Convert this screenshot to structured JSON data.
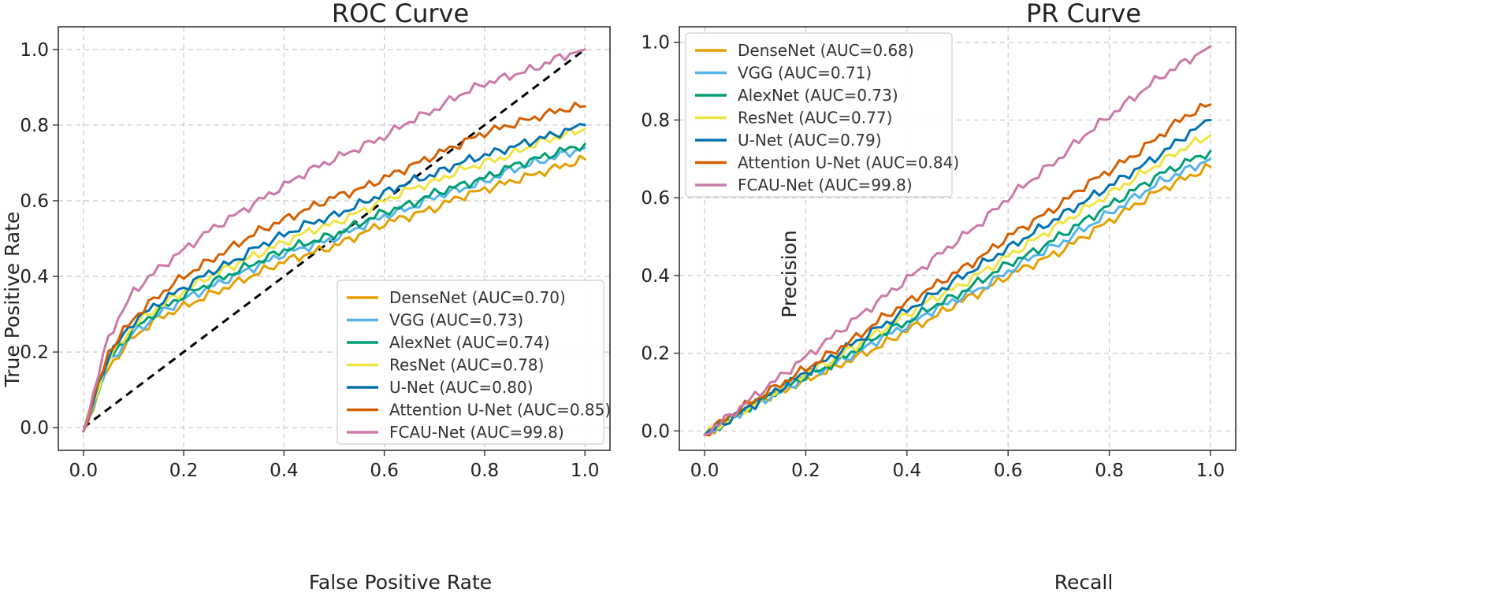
{
  "chart_data": [
    {
      "type": "line",
      "title": "ROC Curve",
      "xlabel": "False Positive Rate",
      "ylabel": "True Positive Rate",
      "xlim": [
        -0.05,
        1.05
      ],
      "ylim": [
        -0.06,
        1.06
      ],
      "xticks": [
        "0.0",
        "0.2",
        "0.4",
        "0.6",
        "0.8",
        "1.0"
      ],
      "yticks": [
        "0.0",
        "0.2",
        "0.4",
        "0.6",
        "0.8",
        "1.0"
      ],
      "grid": true,
      "legend_position": "lower-right",
      "diagonal": {
        "style": "dashed",
        "color": "#000000",
        "from": [
          0,
          0
        ],
        "to": [
          1,
          1
        ]
      },
      "x": [
        0.0,
        0.05,
        0.1,
        0.15,
        0.2,
        0.25,
        0.3,
        0.35,
        0.4,
        0.45,
        0.5,
        0.55,
        0.6,
        0.65,
        0.7,
        0.75,
        0.8,
        0.85,
        0.9,
        0.95,
        1.0
      ],
      "series": [
        {
          "name": "DenseNet (AUC=0.70)",
          "color": "#E69F00",
          "values": [
            -0.01,
            0.16,
            0.24,
            0.29,
            0.32,
            0.35,
            0.38,
            0.41,
            0.44,
            0.46,
            0.48,
            0.51,
            0.54,
            0.56,
            0.58,
            0.61,
            0.63,
            0.65,
            0.67,
            0.69,
            0.71
          ]
        },
        {
          "name": "VGG (AUC=0.73)",
          "color": "#56B4E9",
          "values": [
            -0.01,
            0.17,
            0.25,
            0.3,
            0.34,
            0.37,
            0.4,
            0.43,
            0.46,
            0.48,
            0.5,
            0.53,
            0.56,
            0.58,
            0.61,
            0.63,
            0.65,
            0.68,
            0.7,
            0.72,
            0.74
          ]
        },
        {
          "name": "AlexNet (AUC=0.74)",
          "color": "#009E73",
          "values": [
            -0.01,
            0.18,
            0.26,
            0.31,
            0.35,
            0.38,
            0.41,
            0.44,
            0.47,
            0.49,
            0.51,
            0.54,
            0.57,
            0.59,
            0.62,
            0.64,
            0.66,
            0.69,
            0.71,
            0.73,
            0.75
          ]
        },
        {
          "name": "ResNet (AUC=0.78)",
          "color": "#F0E442",
          "values": [
            -0.01,
            0.18,
            0.27,
            0.32,
            0.36,
            0.4,
            0.43,
            0.46,
            0.49,
            0.52,
            0.54,
            0.57,
            0.6,
            0.63,
            0.65,
            0.68,
            0.7,
            0.72,
            0.75,
            0.77,
            0.79
          ]
        },
        {
          "name": "U-Net (AUC=0.80)",
          "color": "#0072B2",
          "values": [
            -0.01,
            0.19,
            0.28,
            0.33,
            0.37,
            0.41,
            0.44,
            0.48,
            0.51,
            0.54,
            0.56,
            0.59,
            0.62,
            0.65,
            0.67,
            0.7,
            0.72,
            0.74,
            0.76,
            0.78,
            0.8
          ]
        },
        {
          "name": "Attention U-Net (AUC=0.85)",
          "color": "#D55E00",
          "values": [
            -0.01,
            0.2,
            0.29,
            0.35,
            0.4,
            0.44,
            0.48,
            0.52,
            0.55,
            0.58,
            0.61,
            0.63,
            0.66,
            0.69,
            0.72,
            0.75,
            0.78,
            0.8,
            0.82,
            0.84,
            0.85
          ]
        },
        {
          "name": "FCAU-Net (AUC=99.8)",
          "color": "#CC79A7",
          "values": [
            -0.01,
            0.24,
            0.36,
            0.42,
            0.47,
            0.52,
            0.56,
            0.6,
            0.64,
            0.68,
            0.71,
            0.74,
            0.77,
            0.81,
            0.84,
            0.88,
            0.91,
            0.93,
            0.95,
            0.98,
            1.0
          ]
        }
      ]
    },
    {
      "type": "line",
      "title": "PR Curve",
      "xlabel": "Recall",
      "ylabel": "Precision",
      "xlim": [
        -0.05,
        1.05
      ],
      "ylim": [
        -0.05,
        1.04
      ],
      "xticks": [
        "0.0",
        "0.2",
        "0.4",
        "0.6",
        "0.8",
        "1.0"
      ],
      "yticks": [
        "0.0",
        "0.2",
        "0.4",
        "0.6",
        "0.8",
        "1.0"
      ],
      "grid": true,
      "legend_position": "upper-left",
      "x": [
        0.0,
        0.05,
        0.1,
        0.15,
        0.2,
        0.25,
        0.3,
        0.35,
        0.4,
        0.45,
        0.5,
        0.55,
        0.6,
        0.65,
        0.7,
        0.75,
        0.8,
        0.85,
        0.9,
        0.95,
        1.0
      ],
      "series": [
        {
          "name": "DenseNet (AUC=0.68)",
          "color": "#E69F00",
          "values": [
            -0.01,
            0.03,
            0.07,
            0.1,
            0.13,
            0.16,
            0.19,
            0.22,
            0.26,
            0.29,
            0.33,
            0.36,
            0.4,
            0.43,
            0.46,
            0.5,
            0.54,
            0.58,
            0.62,
            0.65,
            0.68
          ]
        },
        {
          "name": "VGG (AUC=0.71)",
          "color": "#56B4E9",
          "values": [
            -0.01,
            0.03,
            0.07,
            0.1,
            0.14,
            0.17,
            0.2,
            0.24,
            0.27,
            0.31,
            0.34,
            0.37,
            0.41,
            0.45,
            0.48,
            0.52,
            0.56,
            0.6,
            0.64,
            0.67,
            0.7
          ]
        },
        {
          "name": "AlexNet (AUC=0.73)",
          "color": "#009E73",
          "values": [
            -0.01,
            0.03,
            0.07,
            0.11,
            0.14,
            0.17,
            0.21,
            0.25,
            0.28,
            0.32,
            0.35,
            0.39,
            0.43,
            0.46,
            0.5,
            0.54,
            0.58,
            0.62,
            0.66,
            0.69,
            0.72
          ]
        },
        {
          "name": "ResNet (AUC=0.77)",
          "color": "#F0E442",
          "values": [
            -0.01,
            0.03,
            0.07,
            0.11,
            0.15,
            0.18,
            0.22,
            0.26,
            0.3,
            0.34,
            0.37,
            0.41,
            0.45,
            0.49,
            0.53,
            0.57,
            0.61,
            0.65,
            0.69,
            0.73,
            0.76
          ]
        },
        {
          "name": "U-Net (AUC=0.79)",
          "color": "#0072B2",
          "values": [
            -0.01,
            0.03,
            0.07,
            0.11,
            0.15,
            0.19,
            0.23,
            0.27,
            0.31,
            0.35,
            0.39,
            0.43,
            0.47,
            0.51,
            0.55,
            0.59,
            0.63,
            0.67,
            0.71,
            0.76,
            0.8
          ]
        },
        {
          "name": "Attention U-Net (AUC=0.84)",
          "color": "#D55E00",
          "values": [
            -0.01,
            0.04,
            0.08,
            0.12,
            0.16,
            0.2,
            0.24,
            0.29,
            0.33,
            0.37,
            0.41,
            0.45,
            0.5,
            0.54,
            0.58,
            0.63,
            0.67,
            0.71,
            0.76,
            0.81,
            0.84
          ]
        },
        {
          "name": "FCAU-Net (AUC=99.8)",
          "color": "#CC79A7",
          "values": [
            -0.01,
            0.04,
            0.09,
            0.14,
            0.19,
            0.24,
            0.29,
            0.34,
            0.39,
            0.44,
            0.49,
            0.54,
            0.6,
            0.65,
            0.7,
            0.76,
            0.81,
            0.86,
            0.91,
            0.95,
            0.99
          ]
        }
      ]
    }
  ]
}
